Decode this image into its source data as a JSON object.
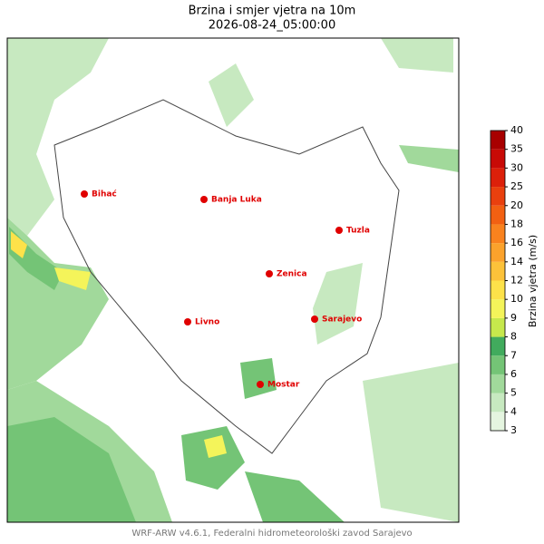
{
  "header": {
    "title": "Brzina i smjer vjetra na 10m",
    "subtitle": "2026-08-24_05:00:00"
  },
  "cities": [
    {
      "name": "Bihać"
    },
    {
      "name": "Banja Luka"
    },
    {
      "name": "Tuzla"
    },
    {
      "name": "Zenica"
    },
    {
      "name": "Livno"
    },
    {
      "name": "Sarajevo"
    },
    {
      "name": "Mostar"
    }
  ],
  "colorbar": {
    "label": "Brzina vjetra (m/s)",
    "ticks": [
      3,
      4,
      5,
      6,
      7,
      8,
      9,
      10,
      12,
      14,
      16,
      18,
      20,
      25,
      30,
      35,
      40
    ],
    "colors": [
      "#e5f5e0",
      "#c7e9c0",
      "#a1d99b",
      "#74c476",
      "#41ab5d",
      "#c6e84c",
      "#f4f45a",
      "#fde24a",
      "#fcc23a",
      "#fba22c",
      "#f9821e",
      "#f26012",
      "#e9400e",
      "#dc200a",
      "#c80a06",
      "#a80000"
    ]
  },
  "footer": "WRF-ARW v4.6.1, Federalni hidrometeorološki zavod Sarajevo"
}
